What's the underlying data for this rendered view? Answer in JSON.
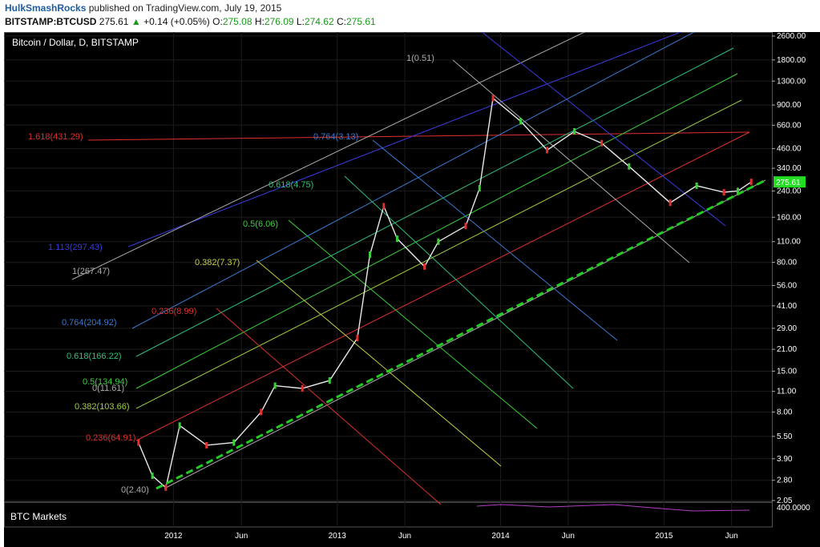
{
  "header": {
    "author": "HulkSmashRocks",
    "published_text": "published on TradingView.com, July 19, 2015",
    "symbol": "BITSTAMP:BTCUSD",
    "last": "275.61",
    "change": "+0.14 (+0.05%)",
    "open_label": "O:",
    "open": "275.08",
    "high_label": "H:",
    "high": "276.09",
    "low_label": "L:",
    "low": "274.62",
    "close_label": "C:",
    "close": "275.61"
  },
  "chart_data": {
    "type": "line",
    "title": "Bitcoin / Dollar, D, BITSTAMP",
    "y_scale": "log",
    "ylim": [
      2.05,
      2600
    ],
    "y_ticks": [
      "2600.00",
      "1800.00",
      "1300.00",
      "900.00",
      "660.00",
      "460.00",
      "340.00",
      "240.00",
      "160.00",
      "110.00",
      "80.00",
      "56.00",
      "41.00",
      "29.00",
      "21.00",
      "15.00",
      "11.00",
      "8.00",
      "5.50",
      "3.90",
      "2.80",
      "2.05"
    ],
    "x_ticks": [
      "2012",
      "Jun",
      "2013",
      "Jun",
      "2014",
      "Jun",
      "2015",
      "Jun"
    ],
    "last_price_label": "275.61",
    "series": [
      {
        "name": "",
        "x": [
          "2011-10",
          "2011-11",
          "2011-12",
          "2012-01",
          "2012-03",
          "2012-05",
          "2012-07",
          "2012-08",
          "2012-10",
          "2012-12",
          "2013-02",
          "2013-03",
          "2013-04",
          "2013-05",
          "2013-07",
          "2013-08",
          "2013-10",
          "2013-11",
          "2013-12",
          "2014-02",
          "2014-04",
          "2014-06",
          "2014-08",
          "2014-10",
          "2015-01",
          "2015-03",
          "2015-05",
          "2015-06",
          "2015-07"
        ],
        "y": [
          5.0,
          3.0,
          2.5,
          6.5,
          4.8,
          5.0,
          8.0,
          12.0,
          11.5,
          13.0,
          25.0,
          90.0,
          190.0,
          115.0,
          75.0,
          110.0,
          140.0,
          250.0,
          1000.0,
          700.0,
          450.0,
          600.0,
          500.0,
          350.0,
          200.0,
          260.0,
          235.0,
          240.0,
          275.61
        ]
      }
    ],
    "fib_fan_labels": [
      {
        "text": "1.618(431.29)",
        "color": "#e03030"
      },
      {
        "text": "1.113(297.43)",
        "color": "#3a3ae0"
      },
      {
        "text": "1(267.47)",
        "color": "#aaaaaa"
      },
      {
        "text": "0.764(204.92)",
        "color": "#3a7ad0"
      },
      {
        "text": "0.618(166.22)",
        "color": "#2fc07a"
      },
      {
        "text": "0.5(134.94)",
        "color": "#3ad03a"
      },
      {
        "text": "0.382(103.66)",
        "color": "#a0d040"
      },
      {
        "text": "0.236(64.91)",
        "color": "#e03030"
      },
      {
        "text": "0(2.40)",
        "color": "#aaaaaa"
      },
      {
        "text": "0(11.61)",
        "color": "#aaaaaa"
      }
    ],
    "fib_perp_labels": [
      {
        "text": "1(0.51)",
        "color": "#aaaaaa"
      },
      {
        "text": "0.764(3.13)",
        "color": "#3a7ad0"
      },
      {
        "text": "0.618(4.75)",
        "color": "#2fc07a"
      },
      {
        "text": "0.5(6.06)",
        "color": "#3ad03a"
      },
      {
        "text": "0.382(7.37)",
        "color": "#c8d040"
      },
      {
        "text": "0.236(8.99)",
        "color": "#e03030"
      }
    ],
    "indicator": {
      "name": "BTC Markets",
      "axis_label": "400.0000"
    }
  }
}
